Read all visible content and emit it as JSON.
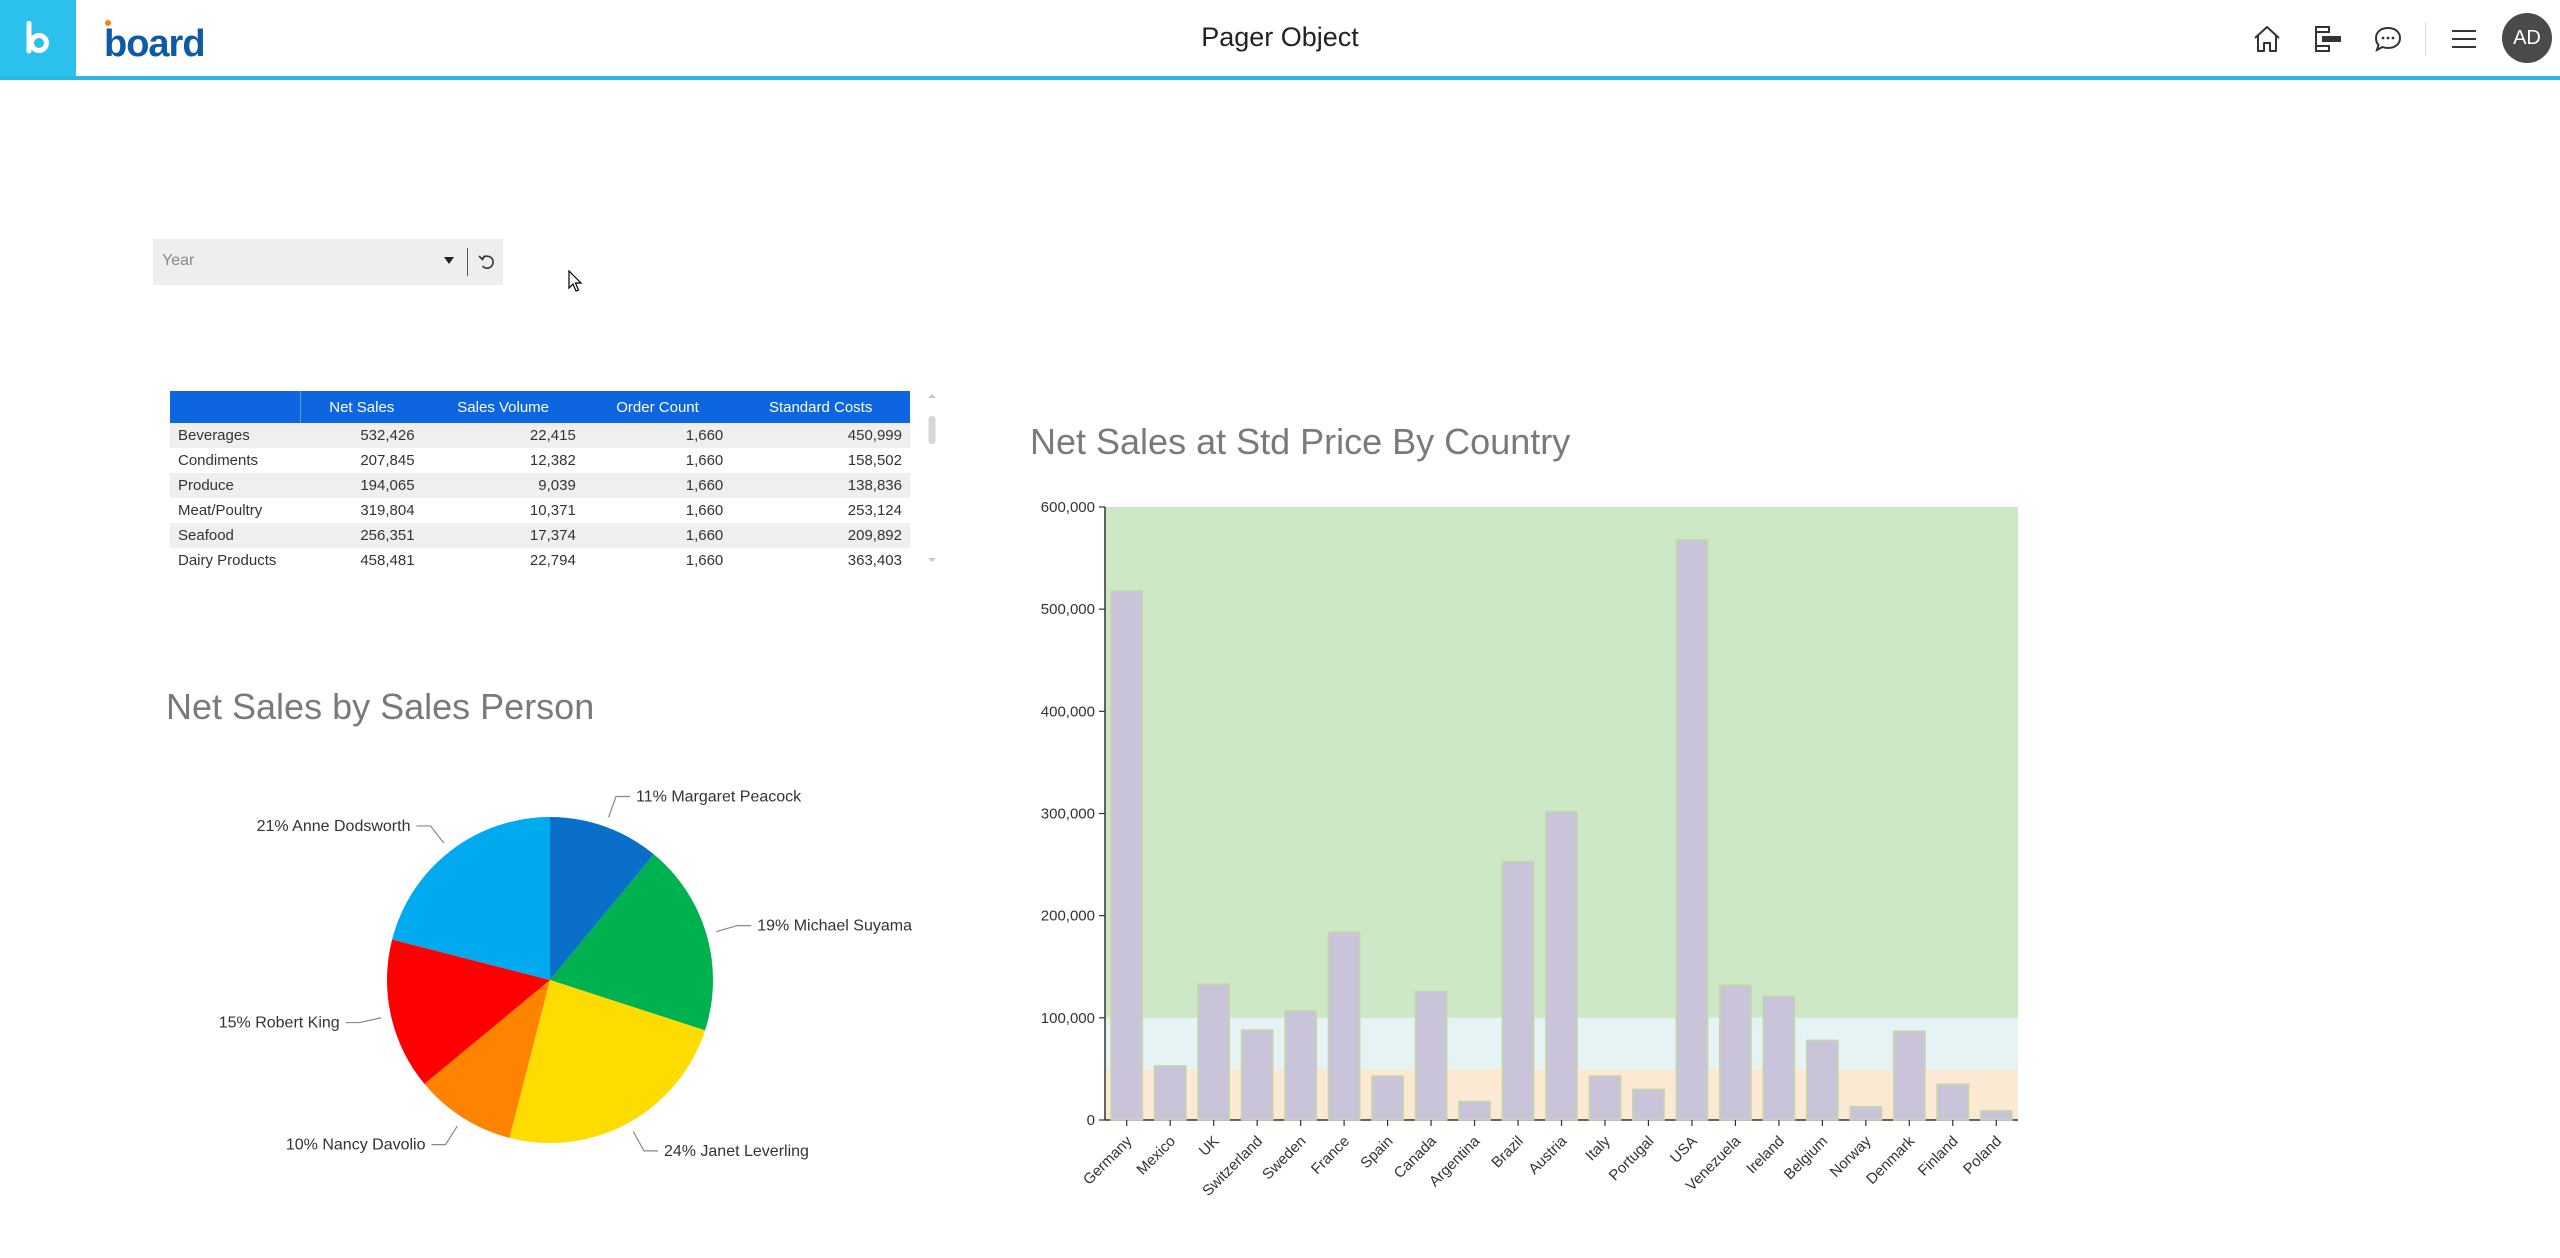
{
  "header": {
    "title": "Pager Object",
    "brand": "board",
    "avatar_initials": "AD",
    "icons": [
      "home-icon",
      "layout-icon",
      "comment-icon",
      "menu-icon"
    ],
    "accent": "#2cc0ec"
  },
  "pager": {
    "placeholder": "Year"
  },
  "table": {
    "columns": [
      "Net Sales",
      "Sales Volume",
      "Order Count",
      "Standard Costs"
    ],
    "header_color": "#0e65e0",
    "rows": [
      {
        "label": "Beverages",
        "values": [
          "532,426",
          "22,415",
          "1,660",
          "450,999"
        ]
      },
      {
        "label": "Condiments",
        "values": [
          "207,845",
          "12,382",
          "1,660",
          "158,502"
        ]
      },
      {
        "label": "Produce",
        "values": [
          "194,065",
          "9,039",
          "1,660",
          "138,836"
        ]
      },
      {
        "label": "Meat/Poultry",
        "values": [
          "319,804",
          "10,371",
          "1,660",
          "253,124"
        ]
      },
      {
        "label": "Seafood",
        "values": [
          "256,351",
          "17,374",
          "1,660",
          "209,892"
        ]
      },
      {
        "label": "Dairy Products",
        "values": [
          "458,481",
          "22,794",
          "1,660",
          "363,403"
        ]
      }
    ]
  },
  "pie_title": "Net Sales by Sales Person",
  "bar_title": "Net Sales at Std Price By Country",
  "chart_data": [
    {
      "type": "pie",
      "title": "Net Sales by Sales Person",
      "slices": [
        {
          "label": "11% Margaret Peacock",
          "value": 11,
          "color": "#0a6fc9"
        },
        {
          "label": "19% Michael Suyama",
          "value": 19,
          "color": "#00b14f"
        },
        {
          "label": "24% Janet Leverling",
          "value": 24,
          "color": "#fedc00"
        },
        {
          "label": "10% Nancy Davolio",
          "value": 10,
          "color": "#fe8300"
        },
        {
          "label": "15% Robert King",
          "value": 15,
          "color": "#fe0000"
        },
        {
          "label": "21% Anne Dodsworth",
          "value": 21,
          "color": "#00aaee"
        }
      ]
    },
    {
      "type": "bar",
      "title": "Net Sales at Std Price By Country",
      "categories": [
        "Germany",
        "Mexico",
        "UK",
        "Switzerland",
        "Sweden",
        "France",
        "Spain",
        "Canada",
        "Argentina",
        "Brazil",
        "Austria",
        "Italy",
        "Portugal",
        "USA",
        "Venezuela",
        "Ireland",
        "Belgium",
        "Norway",
        "Denmark",
        "Finland",
        "Poland"
      ],
      "values": [
        518000,
        53000,
        133000,
        88000,
        107000,
        184000,
        43000,
        126000,
        18000,
        253000,
        302000,
        43000,
        30000,
        568000,
        132000,
        121000,
        78000,
        13000,
        87000,
        35000,
        9000
      ],
      "ylim": [
        0,
        600000
      ],
      "yticks": [
        "0",
        "100,000",
        "200,000",
        "300,000",
        "400,000",
        "500,000",
        "600,000"
      ],
      "bands": [
        {
          "from": 0,
          "to": 50000,
          "color": "#fbe9d4"
        },
        {
          "from": 50000,
          "to": 100000,
          "color": "#e5f3f4"
        },
        {
          "from": 100000,
          "to": 600000,
          "color": "#cce8c6"
        }
      ],
      "bar_color": "#cac4da",
      "bar_border": "#c6d7a6"
    }
  ]
}
